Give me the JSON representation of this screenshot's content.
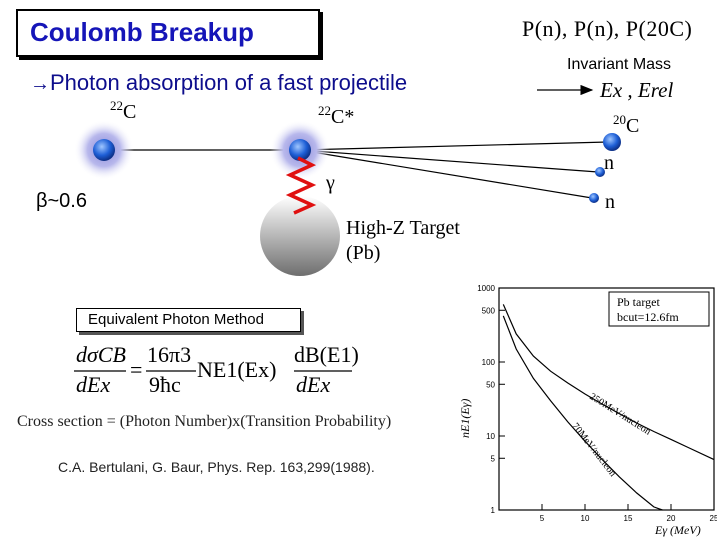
{
  "title": "Coulomb Breakup",
  "subtitle": "Photon absorption of a fast projectile",
  "subtitle_arrow": "→",
  "projectile": {
    "mass_number": "22",
    "symbol": "C"
  },
  "excited": {
    "mass_number": "22",
    "symbol": "C*"
  },
  "fragment": {
    "mass_number": "20",
    "symbol": "C"
  },
  "neutron_1": "n",
  "neutron_2": "n",
  "beta": "β~0.6",
  "gamma": "γ",
  "target_line1": "High-Z Target",
  "target_line2": "(Pb)",
  "momentum_labels": "P(n), P(n), P(20C)",
  "invariant_mass": "Invariant Mass",
  "energy_labels": "Ex , Erel",
  "method_box": "Equivalent Photon Method",
  "formula": {
    "lhs_num": "dσCB",
    "lhs_den": "dEx",
    "equals": "=",
    "coef_num": "16π3",
    "coef_den": "9ħc",
    "photon_number": "NE1(Ex)",
    "rhs_num": "dB(E1)",
    "rhs_den": "dEx"
  },
  "cross_section_text": "Cross section = (Photon Number)x(Transition Probability)",
  "reference": "C.A. Bertulani, G. Baur, Phys. Rep. 163,299(1988).",
  "colors": {
    "title": "#1515b8",
    "subtitle": "#0d0d8c",
    "nucleus": "#1e5fd6",
    "halo": "#b8b8ec",
    "photon": "#e01010",
    "target": "#b4b4b4"
  },
  "chart_data": {
    "type": "line",
    "legend": "top-right",
    "legend_lines": [
      "Pb target",
      "bcut=12.6fm"
    ],
    "xlabel": "Eγ (MeV)",
    "ylabel": "nE1(Eγ)",
    "x_scale": "linear",
    "y_scale": "log",
    "xlim": [
      0,
      25
    ],
    "ylim": [
      1,
      1000
    ],
    "x_ticks": [
      "5",
      "10",
      "15",
      "20",
      "25"
    ],
    "y_ticks": [
      "1000",
      "500",
      "100",
      "50",
      "10",
      "5",
      "1"
    ],
    "series": [
      {
        "name": "250MeV/nucleon",
        "x": [
          0.5,
          2,
          4,
          6,
          8,
          10,
          12,
          14,
          16,
          18,
          20,
          22,
          25
        ],
        "y": [
          600,
          240,
          120,
          75,
          52,
          37,
          27,
          20,
          15,
          11.5,
          9,
          7,
          4.8
        ]
      },
      {
        "name": "70MeV/nucleon",
        "x": [
          0.5,
          2,
          4,
          6,
          8,
          10,
          12,
          14,
          16,
          18,
          19
        ],
        "y": [
          420,
          150,
          60,
          30,
          15.5,
          8.5,
          4.8,
          2.8,
          1.7,
          1.1,
          0.9
        ]
      }
    ]
  }
}
